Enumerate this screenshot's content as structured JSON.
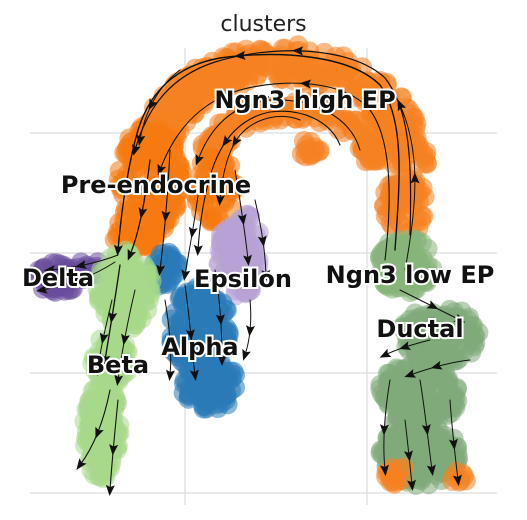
{
  "chart_data": {
    "type": "scatter",
    "title": "clusters",
    "xlabel": "",
    "ylabel": "",
    "grid": true,
    "overlay": "velocity streamlines",
    "clusters": [
      {
        "name": "Ngn3 high EP",
        "color": "#f58220"
      },
      {
        "name": "Pre-endocrine",
        "color": "#f57a10"
      },
      {
        "name": "Delta",
        "color": "#6a4c9c"
      },
      {
        "name": "Epsilon",
        "color": "#b8a3d6"
      },
      {
        "name": "Ngn3 low EP",
        "color": "#86b57a"
      },
      {
        "name": "Ductal",
        "color": "#7fa97a"
      },
      {
        "name": "Beta",
        "color": "#a8d88a"
      },
      {
        "name": "Alpha",
        "color": "#2a7ab8"
      }
    ]
  }
}
